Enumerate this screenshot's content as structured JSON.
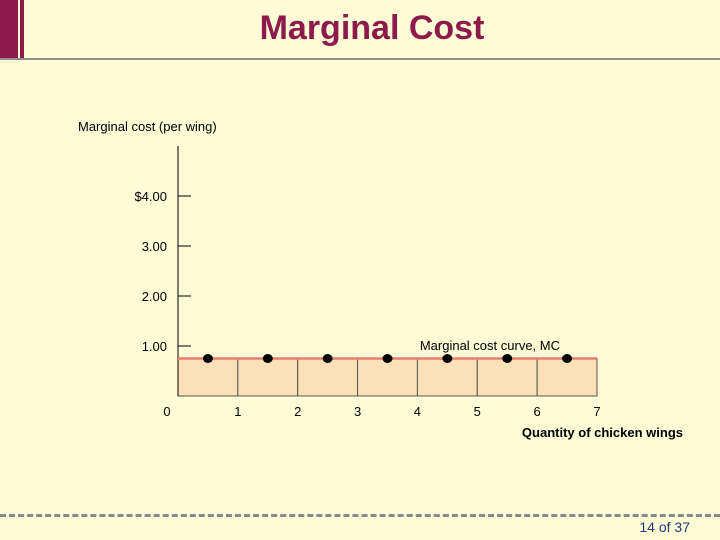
{
  "slide": {
    "title": "Marginal Cost",
    "page_number": "14 of 37",
    "colors": {
      "accent": "#8c1a4b",
      "background": "#fefbd6",
      "curve": "#e8806e",
      "bar_fill": "#fbe0b8"
    }
  },
  "chart_data": {
    "type": "line",
    "title": "",
    "ylabel": "Marginal cost (per wing)",
    "xlabel": "Quantity of chicken wings",
    "y_ticks": [
      {
        "value": 1,
        "label": "1.00"
      },
      {
        "value": 2,
        "label": "2.00"
      },
      {
        "value": 3,
        "label": "3.00"
      },
      {
        "value": 4,
        "label": "$4.00"
      }
    ],
    "x_ticks": [
      {
        "value": 0,
        "label": "0"
      },
      {
        "value": 1,
        "label": "1"
      },
      {
        "value": 2,
        "label": "2"
      },
      {
        "value": 3,
        "label": "3"
      },
      {
        "value": 4,
        "label": "4"
      },
      {
        "value": 5,
        "label": "5"
      },
      {
        "value": 6,
        "label": "6"
      },
      {
        "value": 7,
        "label": "7"
      }
    ],
    "xlim": [
      0,
      7
    ],
    "ylim": [
      0,
      5
    ],
    "series": [
      {
        "name": "Marginal cost curve, MC",
        "x": [
          0.5,
          1.5,
          2.5,
          3.5,
          4.5,
          5.5,
          6.5
        ],
        "y": [
          0.75,
          0.75,
          0.75,
          0.75,
          0.75,
          0.75,
          0.75
        ]
      }
    ],
    "bars": {
      "x_start": [
        0,
        1,
        2,
        3,
        4,
        5,
        6
      ],
      "x_end": [
        1,
        2,
        3,
        4,
        5,
        6,
        7
      ],
      "value": 0.75
    }
  }
}
